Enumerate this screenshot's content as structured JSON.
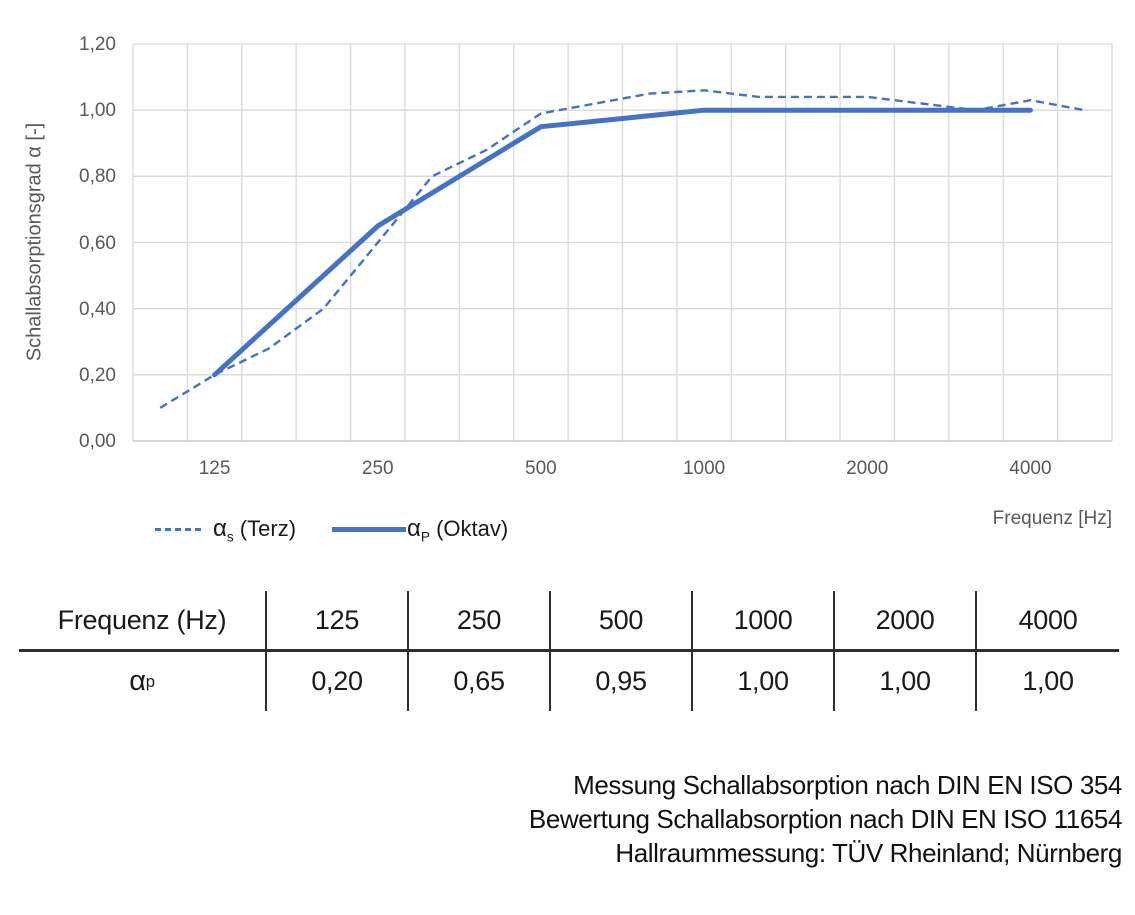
{
  "chart": {
    "y_axis_title": "Schallabsorptionsgrad α [-]",
    "x_axis_title": "Frequenz [Hz]",
    "legend": {
      "terz": {
        "alpha": "α",
        "sub": "s",
        "rest": " (Terz)"
      },
      "oktav": {
        "alpha": "α",
        "sub": "P",
        "rest": " (Oktav)"
      }
    }
  },
  "chart_data": {
    "type": "line",
    "title": "",
    "xlabel": "Frequenz [Hz]",
    "ylabel": "Schallabsorptionsgrad α [-]",
    "x_scale": "log-categorical-third-octave",
    "x_categories": [
      "100",
      "125",
      "160",
      "200",
      "250",
      "315",
      "400",
      "500",
      "630",
      "800",
      "1000",
      "1250",
      "1600",
      "2000",
      "2500",
      "3150",
      "4000",
      "5000"
    ],
    "x_tick_labels": [
      {
        "index": 1,
        "label": "125"
      },
      {
        "index": 4,
        "label": "250"
      },
      {
        "index": 7,
        "label": "500"
      },
      {
        "index": 10,
        "label": "1000"
      },
      {
        "index": 13,
        "label": "2000"
      },
      {
        "index": 16,
        "label": "4000"
      }
    ],
    "ylim": [
      0,
      1.2
    ],
    "y_ticks": [
      {
        "value": 0.0,
        "label": "0,00"
      },
      {
        "value": 0.2,
        "label": "0,20"
      },
      {
        "value": 0.4,
        "label": "0,40"
      },
      {
        "value": 0.6,
        "label": "0,60"
      },
      {
        "value": 0.8,
        "label": "0,80"
      },
      {
        "value": 1.0,
        "label": "1,00"
      },
      {
        "value": 1.2,
        "label": "1,20"
      }
    ],
    "grid": true,
    "legend_position": "bottom-left",
    "series": [
      {
        "name": "αs (Terz)",
        "style": "dashed",
        "color": "#4472C4",
        "values": [
          0.1,
          0.2,
          0.28,
          0.4,
          0.6,
          0.8,
          0.88,
          0.99,
          1.02,
          1.05,
          1.06,
          1.04,
          1.04,
          1.04,
          1.02,
          1.0,
          1.03,
          1.0
        ]
      },
      {
        "name": "αP (Oktav)",
        "style": "solid",
        "color": "#4472C4",
        "indices": [
          1,
          4,
          7,
          10,
          13,
          16
        ],
        "values": [
          0.2,
          0.65,
          0.95,
          1.0,
          1.0,
          1.0
        ]
      }
    ]
  },
  "table": {
    "header": [
      "Frequenz (Hz)",
      "125",
      "250",
      "500",
      "1000",
      "2000",
      "4000"
    ],
    "row_label": {
      "alpha": "α",
      "sub": "p"
    },
    "values": [
      "0,20",
      "0,65",
      "0,95",
      "1,00",
      "1,00",
      "1,00"
    ]
  },
  "notes": {
    "line1": "Messung Schallabsorption nach DIN EN ISO 354",
    "line2": "Bewertung Schallabsorption nach DIN EN ISO 11654",
    "line3": "Hallraummessung: TÜV Rheinland; Nürnberg"
  },
  "colors": {
    "line_blue": "#4472C4",
    "grid": "#D9D9D9",
    "axis_line": "#BFBFBF",
    "axis_text": "#595959",
    "text": "#1A1A1A"
  }
}
